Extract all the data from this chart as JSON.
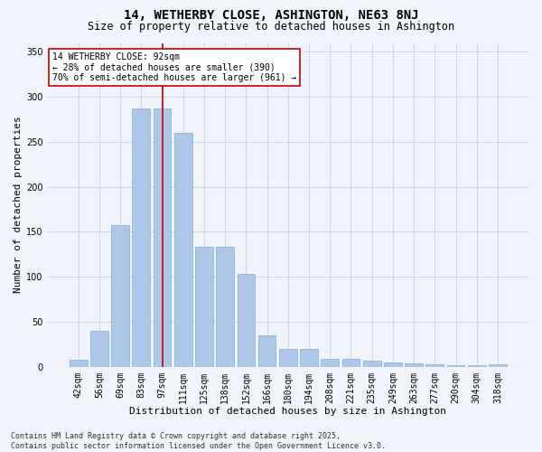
{
  "title": "14, WETHERBY CLOSE, ASHINGTON, NE63 8NJ",
  "subtitle": "Size of property relative to detached houses in Ashington",
  "xlabel": "Distribution of detached houses by size in Ashington",
  "ylabel": "Number of detached properties",
  "categories": [
    "42sqm",
    "56sqm",
    "69sqm",
    "83sqm",
    "97sqm",
    "111sqm",
    "125sqm",
    "138sqm",
    "152sqm",
    "166sqm",
    "180sqm",
    "194sqm",
    "208sqm",
    "221sqm",
    "235sqm",
    "249sqm",
    "263sqm",
    "277sqm",
    "290sqm",
    "304sqm",
    "318sqm"
  ],
  "values": [
    8,
    40,
    158,
    287,
    287,
    260,
    133,
    133,
    103,
    35,
    20,
    20,
    9,
    9,
    7,
    5,
    4,
    3,
    2,
    2,
    3
  ],
  "bar_color": "#aec6e8",
  "bar_edge_color": "#7bafd4",
  "grid_color": "#d0d8e8",
  "bg_color": "#f0f4fa",
  "vline_x_index": 4,
  "vline_color": "#cc0000",
  "annotation_line1": "14 WETHERBY CLOSE: 92sqm",
  "annotation_line2": "← 28% of detached houses are smaller (390)",
  "annotation_line3": "70% of semi-detached houses are larger (961) →",
  "annotation_box_color": "#ffffff",
  "annotation_box_edge": "#cc0000",
  "ylim": [
    0,
    360
  ],
  "yticks": [
    0,
    50,
    100,
    150,
    200,
    250,
    300,
    350
  ],
  "footnote": "Contains HM Land Registry data © Crown copyright and database right 2025.\nContains public sector information licensed under the Open Government Licence v3.0.",
  "title_fontsize": 10,
  "subtitle_fontsize": 8.5,
  "xlabel_fontsize": 8,
  "ylabel_fontsize": 8,
  "tick_fontsize": 7,
  "annotation_fontsize": 7,
  "footnote_fontsize": 6
}
